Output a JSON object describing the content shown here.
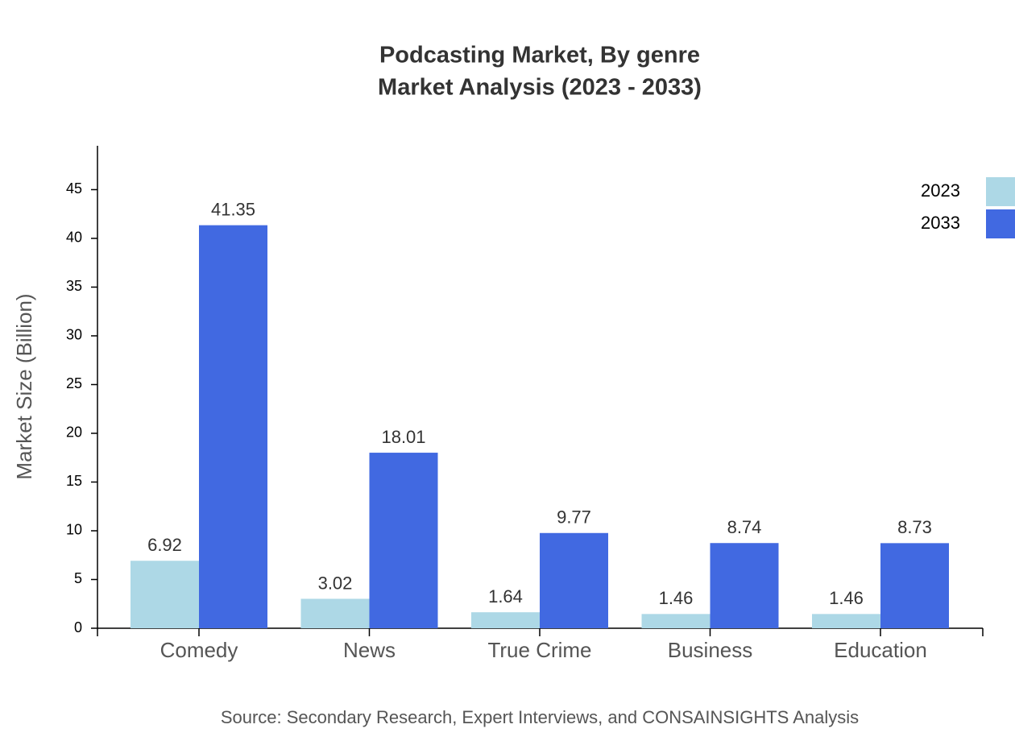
{
  "chart_data": {
    "type": "bar",
    "title": "Podcasting Market, By genre",
    "subtitle": "Market Analysis (2023 - 2033)",
    "y_label": "Market Size (Billion)",
    "source": "Source: Secondary Research, Expert Interviews, and CONSAINSIGHTS Analysis",
    "categories": [
      "Comedy",
      "News",
      "True Crime",
      "Business",
      "Education"
    ],
    "series": [
      {
        "name": "2023",
        "color": "#add8e6",
        "values": [
          6.92,
          3.02,
          1.64,
          1.46,
          1.46
        ]
      },
      {
        "name": "2033",
        "color": "#4169e1",
        "values": [
          41.35,
          18.01,
          9.77,
          8.74,
          8.73
        ]
      }
    ],
    "ylim": [
      0,
      49.5
    ],
    "yticks": [
      0,
      5,
      10,
      15,
      20,
      25,
      30,
      35,
      40,
      45
    ],
    "grid": false
  }
}
